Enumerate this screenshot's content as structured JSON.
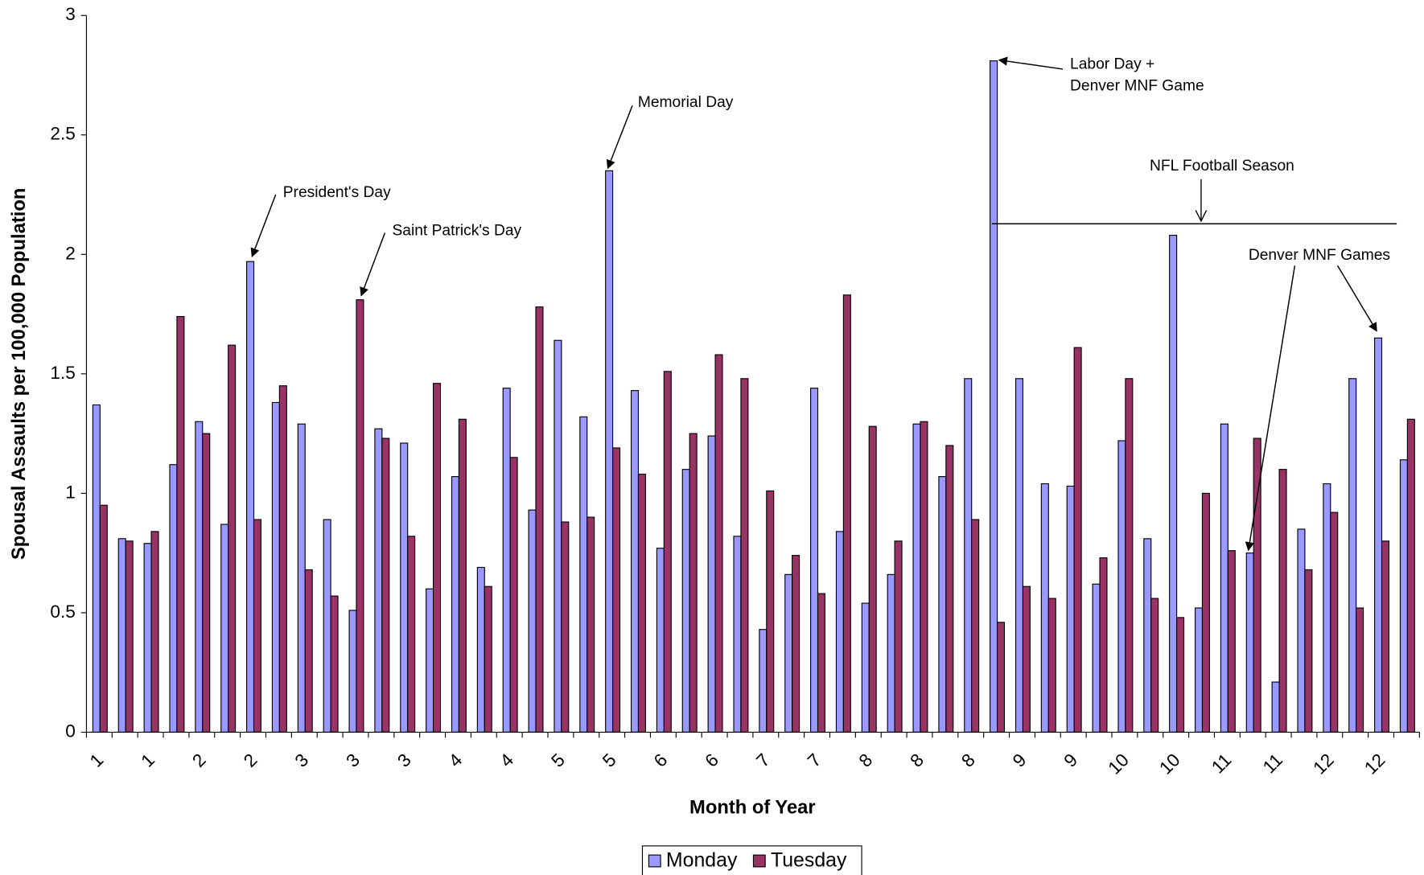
{
  "chart_data": {
    "type": "bar",
    "x_label": "Month of Year",
    "y_label": "Spousal Assaults per 100,000 Population",
    "categories": [
      "1",
      null,
      "1",
      null,
      "2",
      null,
      "2",
      null,
      "3",
      null,
      "3",
      null,
      "3",
      null,
      "4",
      null,
      "4",
      null,
      "5",
      null,
      "5",
      null,
      "6",
      null,
      "6",
      null,
      "7",
      null,
      "7",
      null,
      "8",
      null,
      "8",
      null,
      "8",
      null,
      "9",
      null,
      "9",
      null,
      "10",
      null,
      "10",
      null,
      "11",
      null,
      "11",
      null,
      "12",
      null,
      "12",
      null
    ],
    "series": [
      {
        "name": "Monday",
        "color": "#9999ff",
        "values": [
          1.37,
          0.81,
          0.79,
          1.12,
          1.3,
          0.87,
          1.97,
          1.38,
          1.29,
          0.89,
          0.51,
          1.27,
          1.21,
          0.6,
          1.07,
          0.69,
          1.44,
          0.93,
          1.64,
          1.32,
          2.35,
          1.43,
          0.77,
          1.1,
          1.24,
          0.82,
          0.43,
          0.66,
          1.44,
          0.84,
          0.54,
          0.66,
          1.29,
          1.07,
          1.48,
          2.81,
          1.48,
          1.04,
          1.03,
          0.62,
          1.22,
          0.81,
          2.08,
          0.52,
          1.29,
          0.75,
          0.21,
          0.85,
          1.04,
          1.48,
          1.65,
          1.14
        ]
      },
      {
        "name": "Tuesday",
        "color": "#993366",
        "values": [
          0.95,
          0.8,
          0.84,
          1.74,
          1.25,
          1.62,
          0.89,
          1.45,
          0.68,
          0.57,
          1.81,
          1.23,
          0.82,
          1.46,
          1.31,
          0.61,
          1.15,
          1.78,
          0.88,
          0.9,
          1.19,
          1.08,
          1.51,
          1.25,
          1.58,
          1.48,
          1.01,
          0.74,
          0.58,
          1.83,
          1.28,
          0.8,
          1.3,
          1.2,
          0.89,
          0.46,
          0.61,
          0.56,
          1.61,
          0.73,
          1.48,
          0.56,
          0.48,
          1.0,
          0.76,
          1.23,
          1.1,
          0.68,
          0.92,
          0.52,
          0.8,
          1.31
        ]
      }
    ],
    "ylim": [
      0,
      3
    ],
    "yticks": [
      0,
      0.5,
      1,
      1.5,
      2,
      2.5,
      3
    ],
    "grid": false,
    "legend": "bottom",
    "annotations": [
      "President's Day",
      "Saint Patrick's Day",
      "Memorial Day",
      "Labor Day +",
      "Denver MNF Game",
      "NFL Football Season",
      "Denver MNF Games"
    ]
  }
}
